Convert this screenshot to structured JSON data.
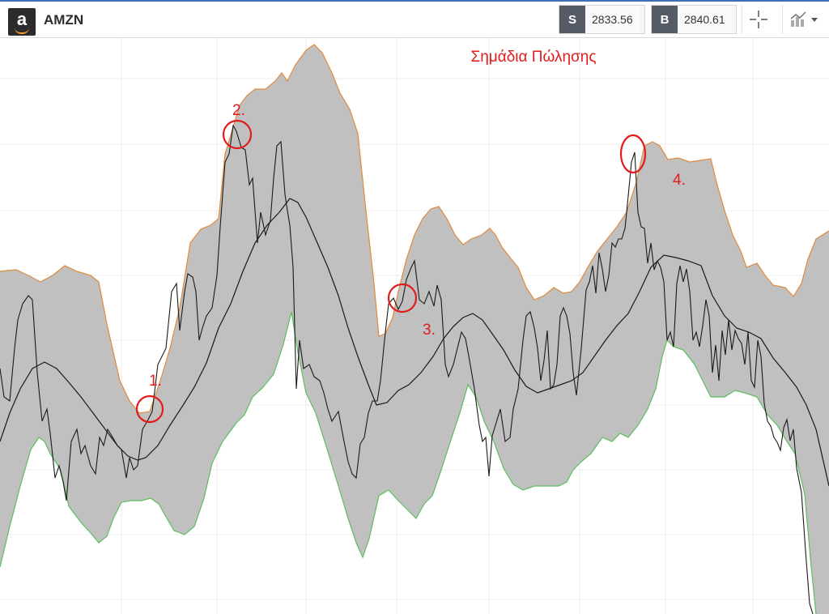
{
  "header": {
    "logo_letter": "a",
    "symbol": "AMZN",
    "sell_label": "S",
    "sell_price": "2833.56",
    "buy_label": "B",
    "buy_price": "2840.61",
    "crosshair_icon": "crosshair-icon",
    "chart_type_icon": "chart-type-icon",
    "dropdown_icon": "chevron-down-icon"
  },
  "chart_data": {
    "type": "line",
    "title": "Σημάδια Πώλησης",
    "annotations": [
      "1.",
      "2.",
      "3.",
      "4."
    ],
    "bollinger_bands": true,
    "colors": {
      "band_fill": "#c0c0c0",
      "upper_band": "#e08a3c",
      "lower_band": "#5cbf5c",
      "price": "#1a1a1a",
      "annotation": "#e21b1b",
      "grid": "#ececec"
    }
  }
}
